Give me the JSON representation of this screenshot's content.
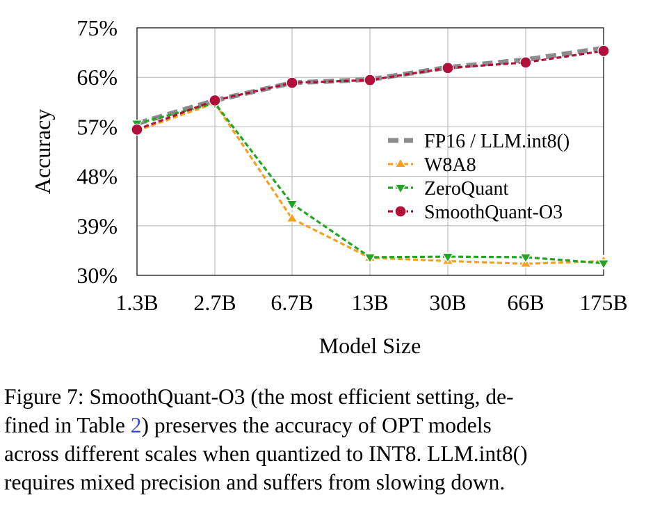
{
  "chart_data": {
    "type": "line",
    "title": "",
    "xlabel": "Model Size",
    "ylabel": "Accuracy",
    "categories": [
      "1.3B",
      "2.7B",
      "6.7B",
      "13B",
      "30B",
      "66B",
      "175B"
    ],
    "ylim": [
      30,
      75
    ],
    "yticks": [
      30,
      39,
      48,
      57,
      66,
      75
    ],
    "ytick_labels": [
      "30%",
      "39%",
      "48%",
      "57%",
      "66%",
      "75%"
    ],
    "grid": true,
    "legend_position": "center-right",
    "series": [
      {
        "name": "FP16 / LLM.int8()",
        "values": [
          57.6,
          61.8,
          65.0,
          65.6,
          67.8,
          69.2,
          71.3
        ],
        "color": "#8c8c8c",
        "marker": "none",
        "style": "dashed-thick"
      },
      {
        "name": "W8A8",
        "values": [
          56.3,
          61.3,
          40.3,
          33.2,
          32.6,
          32.1,
          32.6
        ],
        "color": "#f5a020",
        "marker": "triangle-up",
        "style": "dashed"
      },
      {
        "name": "ZeroQuant",
        "values": [
          57.6,
          61.3,
          43.0,
          33.3,
          33.4,
          33.3,
          32.2
        ],
        "color": "#22a522",
        "marker": "triangle-down",
        "style": "dashed"
      },
      {
        "name": "SmoothQuant-O3",
        "values": [
          56.5,
          61.8,
          65.0,
          65.5,
          67.7,
          68.7,
          70.8
        ],
        "color": "#b0103a",
        "marker": "circle",
        "style": "dashed"
      }
    ]
  },
  "caption": {
    "lines": [
      "Figure 7: SmoothQuant-O3 (the most efficient setting, de-",
      "fined in Table ",
      "2",
      ") preserves the accuracy of OPT models",
      "across different scales when quantized to INT8. LLM.int8()",
      "requires mixed precision and suffers from slowing down."
    ]
  }
}
